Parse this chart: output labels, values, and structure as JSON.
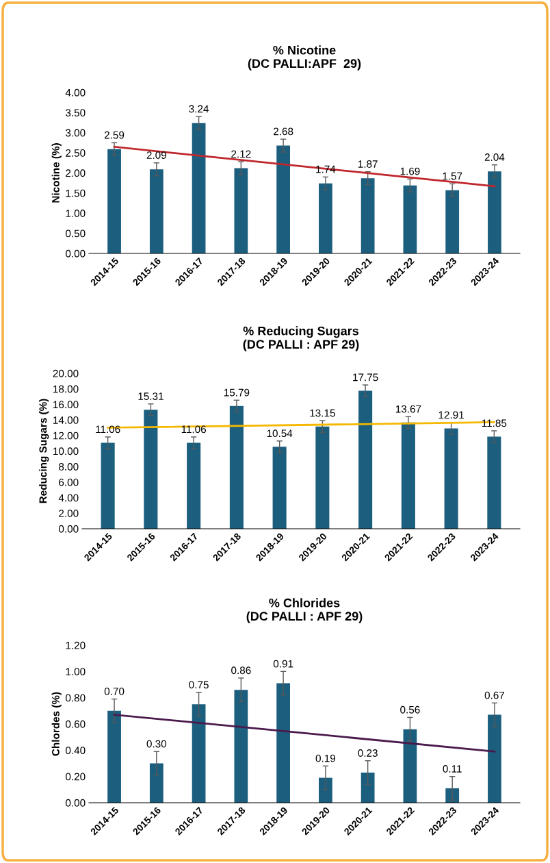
{
  "chart_data": [
    {
      "type": "bar",
      "title": "% Nicotine\n(DC PALLI:APF  29)",
      "ylabel": "Nicotine (%)",
      "categories": [
        "2014-15",
        "2015-16",
        "2016-17",
        "2017-18",
        "2018-19",
        "2019-20",
        "2020-21",
        "2021-22",
        "2022-23",
        "2023-24"
      ],
      "series": [
        {
          "color": "#1b5e7e",
          "values": [
            2.59,
            2.09,
            3.24,
            2.12,
            2.68,
            1.74,
            1.87,
            1.69,
            1.57,
            2.04
          ],
          "value_labels": [
            "2.59",
            "2.09",
            "3.24",
            "2.12",
            "2.68",
            "1.74",
            "1.87",
            "1.69",
            "1.57",
            "2.04"
          ],
          "errors": [
            0.16,
            0.16,
            0.16,
            0.16,
            0.16,
            0.16,
            0.16,
            0.16,
            0.16,
            0.16
          ]
        },
        {
          "type": "line",
          "color": "#c0272d",
          "x": [
            "2014-15",
            "2023-24"
          ],
          "values": [
            2.65,
            1.67
          ]
        }
      ],
      "ylim": [
        0,
        4
      ],
      "yticks": [
        {
          "value": 0,
          "label": "0.00"
        },
        {
          "value": 0.5,
          "label": "0.50"
        },
        {
          "value": 1,
          "label": "1.00"
        },
        {
          "value": 1.5,
          "label": "1.50"
        },
        {
          "value": 2,
          "label": "2.00"
        },
        {
          "value": 2.5,
          "label": "2.50"
        },
        {
          "value": 3,
          "label": "3.00"
        },
        {
          "value": 3.5,
          "label": "3.50"
        },
        {
          "value": 4,
          "label": "4.00"
        }
      ],
      "grid": false,
      "legend": false
    },
    {
      "type": "bar",
      "title": "% Reducing Sugars\n(DC PALLI : APF 29)",
      "ylabel": "Reducing Sugars (%)",
      "categories": [
        "2014-15",
        "2015-16",
        "2016-17",
        "2017-18",
        "2018-19",
        "2019-20",
        "2020-21",
        "2021-22",
        "2022-23",
        "2023-24"
      ],
      "series": [
        {
          "color": "#1b5e7e",
          "values": [
            11.06,
            15.31,
            11.06,
            15.79,
            10.54,
            13.15,
            17.75,
            13.67,
            12.91,
            11.85
          ],
          "value_labels": [
            "11.06",
            "15.31",
            "11.06",
            "15.79",
            "10.54",
            "13.15",
            "17.75",
            "13.67",
            "12.91",
            "11.85"
          ],
          "errors": [
            0.75,
            0.75,
            0.75,
            0.75,
            0.75,
            0.75,
            0.75,
            0.75,
            0.75,
            0.75
          ]
        },
        {
          "type": "line",
          "color": "#f5b800",
          "x": [
            "2014-15",
            "2023-24"
          ],
          "values": [
            13.0,
            13.7
          ]
        }
      ],
      "ylim": [
        0,
        20
      ],
      "yticks": [
        {
          "value": 0,
          "label": "0.00"
        },
        {
          "value": 2,
          "label": "2.00"
        },
        {
          "value": 4,
          "label": "4.00"
        },
        {
          "value": 6,
          "label": "6.00"
        },
        {
          "value": 8,
          "label": "8.00"
        },
        {
          "value": 10,
          "label": "10.00"
        },
        {
          "value": 12,
          "label": "12.00"
        },
        {
          "value": 14,
          "label": "14.00"
        },
        {
          "value": 16,
          "label": "16.00"
        },
        {
          "value": 18,
          "label": "18.00"
        },
        {
          "value": 20,
          "label": "20.00"
        }
      ],
      "grid": false,
      "legend": false
    },
    {
      "type": "bar",
      "title": "% Chlorides\n(DC PALLI : APF 29)",
      "ylabel": "Chlordes (%)",
      "categories": [
        "2014-15",
        "2015-16",
        "2016-17",
        "2017-18",
        "2018-19",
        "2019-20",
        "2020-21",
        "2021-22",
        "2022-23",
        "2023-24"
      ],
      "series": [
        {
          "color": "#1b5e7e",
          "values": [
            0.7,
            0.3,
            0.75,
            0.86,
            0.91,
            0.19,
            0.23,
            0.56,
            0.11,
            0.67
          ],
          "value_labels": [
            "0.70",
            "0.30",
            "0.75",
            "0.86",
            "0.91",
            "0.19",
            "0.23",
            "0.56",
            "0.11",
            "0.67"
          ],
          "errors": [
            0.09,
            0.09,
            0.09,
            0.09,
            0.09,
            0.09,
            0.09,
            0.09,
            0.09,
            0.09
          ]
        },
        {
          "type": "line",
          "color": "#4b1a4d",
          "x": [
            "2014-15",
            "2023-24"
          ],
          "values": [
            0.67,
            0.39
          ]
        }
      ],
      "ylim": [
        0,
        1.2
      ],
      "yticks": [
        {
          "value": 0,
          "label": "0.00"
        },
        {
          "value": 0.2,
          "label": "0.20"
        },
        {
          "value": 0.4,
          "label": "0.40"
        },
        {
          "value": 0.6,
          "label": "0.60"
        },
        {
          "value": 0.8,
          "label": "0.80"
        },
        {
          "value": 1,
          "label": "1.00"
        },
        {
          "value": 1.2,
          "label": "1.20"
        }
      ],
      "grid": false,
      "legend": false
    }
  ]
}
